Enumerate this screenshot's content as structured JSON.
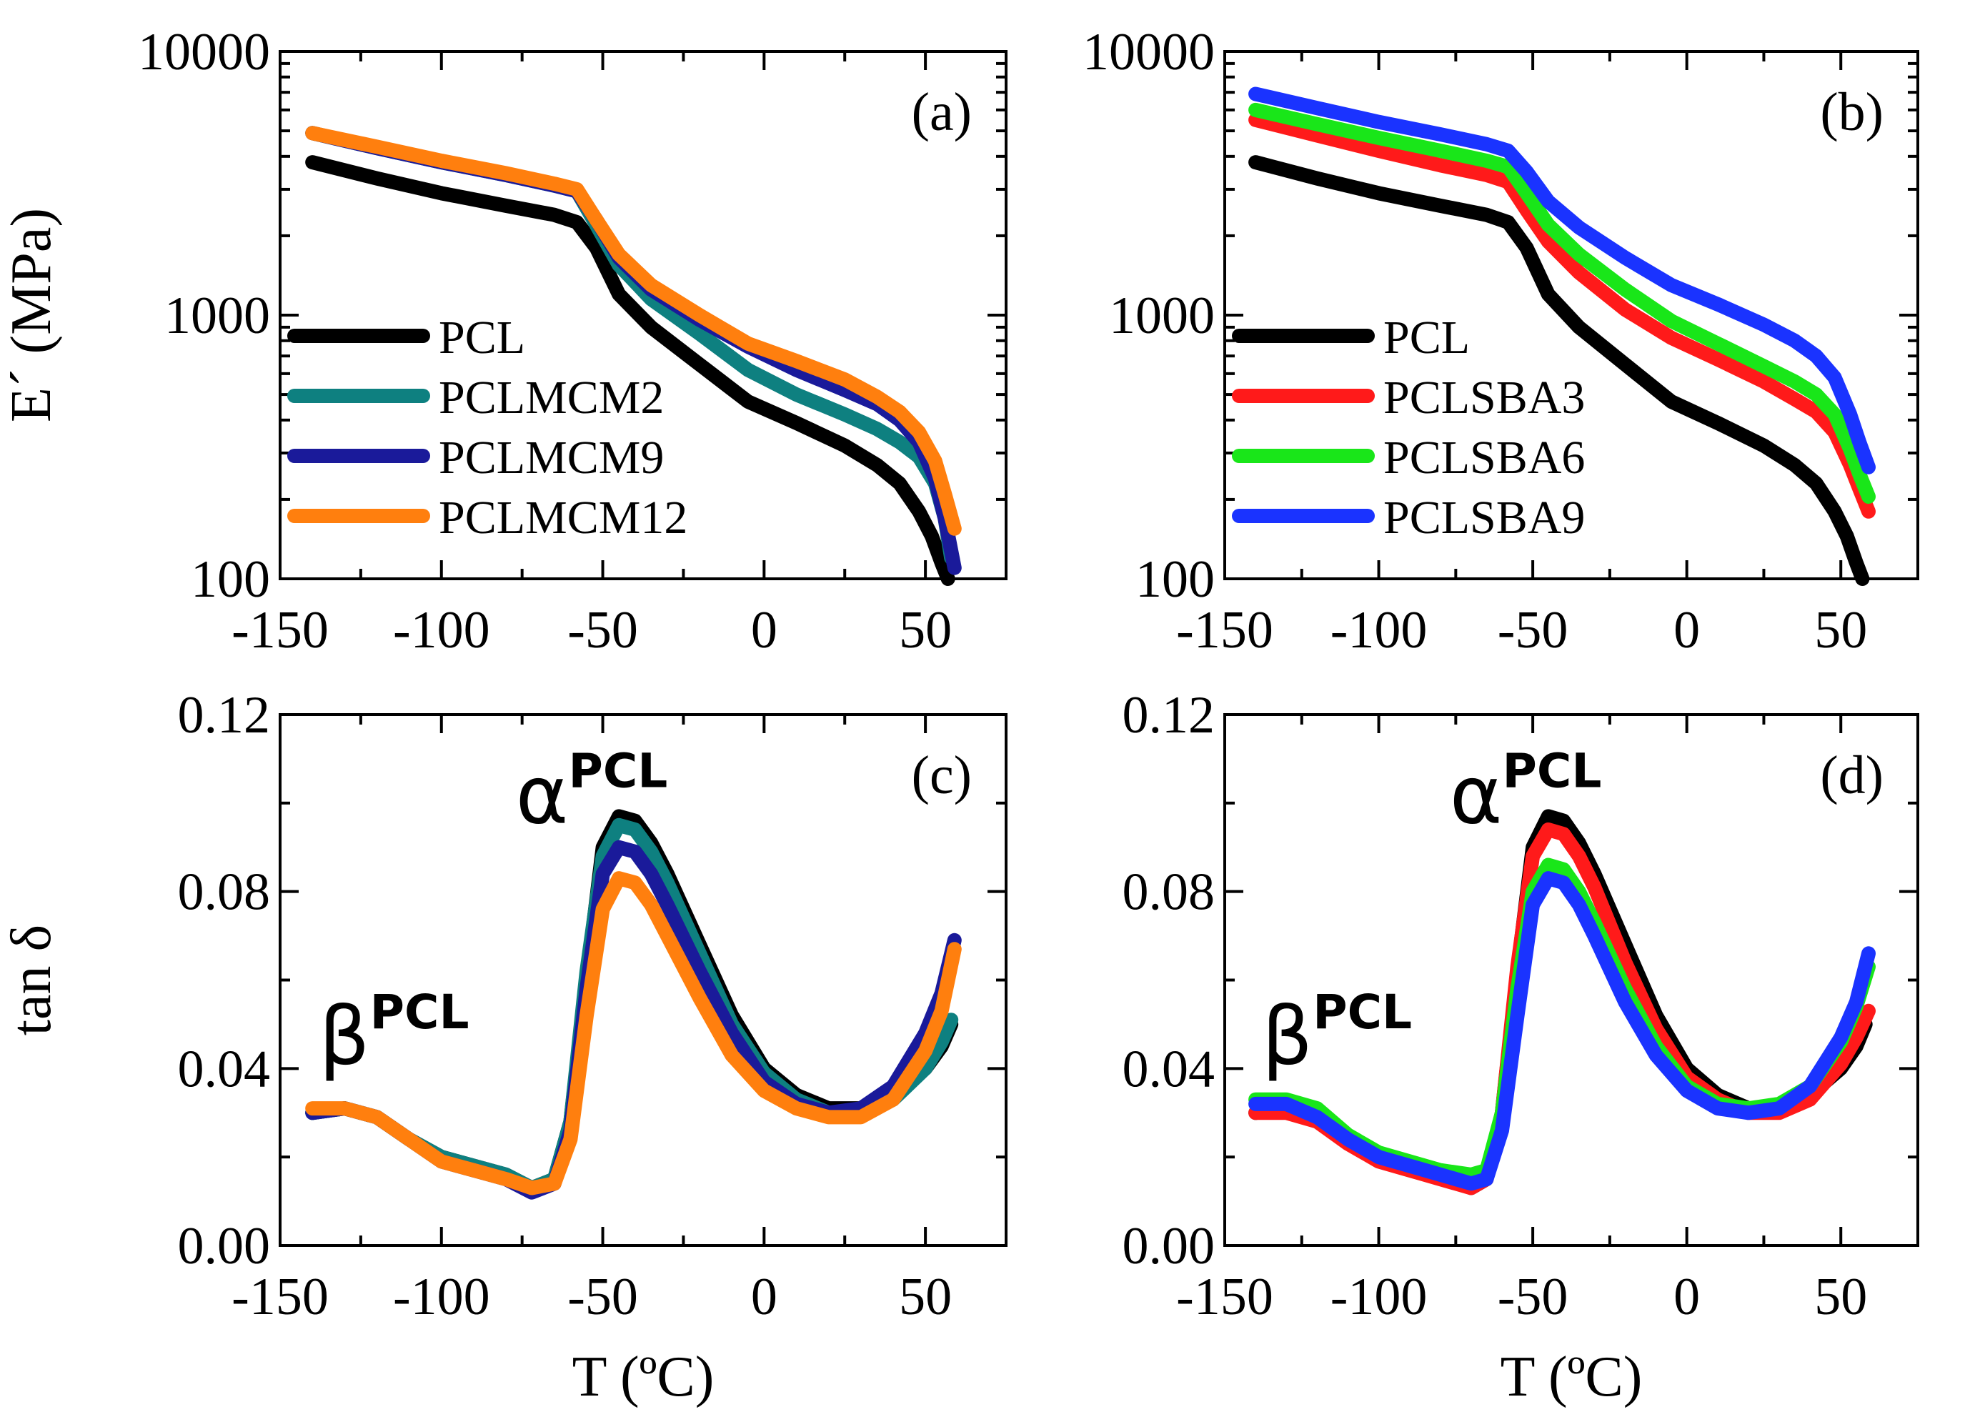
{
  "colors": {
    "PCL": "#000000",
    "PCLMCM2": "#0e8080",
    "PCLMCM9": "#1a1a9a",
    "PCLMCM12": "#ff7f0e",
    "PCLSBA3": "#ff1a1a",
    "PCLSBA6": "#19e619",
    "PCLSBA9": "#1a33ff"
  },
  "chart_data": [
    {
      "id": "a",
      "type": "line",
      "panel_label": "(a)",
      "ylabel": "E´ (MPa)",
      "xlabel": "",
      "yscale": "log",
      "xlim": [
        -150,
        75
      ],
      "ylim": [
        100,
        10000
      ],
      "xticks": [
        -150,
        -100,
        -50,
        0,
        50
      ],
      "xtick_labels": [
        "-150",
        "-100",
        "-50",
        "0",
        "50"
      ],
      "yticks": [
        100,
        1000,
        10000
      ],
      "ytick_labels": [
        "100",
        "1000",
        "10000"
      ],
      "legend": {
        "position": "bottom-left",
        "entries": [
          "PCL",
          "PCLMCM2",
          "PCLMCM9",
          "PCLMCM12"
        ]
      },
      "series": [
        {
          "name": "PCL",
          "x": [
            -140,
            -120,
            -100,
            -80,
            -65,
            -58,
            -52,
            -45,
            -35,
            -20,
            -5,
            10,
            25,
            35,
            42,
            48,
            52,
            55,
            57
          ],
          "y": [
            3800,
            3300,
            2900,
            2600,
            2400,
            2250,
            1800,
            1200,
            900,
            650,
            470,
            390,
            320,
            270,
            230,
            180,
            145,
            115,
            100
          ]
        },
        {
          "name": "PCLMCM2",
          "x": [
            -140,
            -120,
            -100,
            -80,
            -65,
            -58,
            -52,
            -45,
            -35,
            -20,
            -5,
            10,
            25,
            35,
            42,
            48,
            53,
            56,
            58
          ],
          "y": [
            4900,
            4300,
            3800,
            3400,
            3100,
            2950,
            2200,
            1550,
            1150,
            850,
            620,
            500,
            420,
            370,
            330,
            290,
            230,
            170,
            120
          ]
        },
        {
          "name": "PCLMCM9",
          "x": [
            -140,
            -120,
            -100,
            -80,
            -65,
            -58,
            -52,
            -45,
            -35,
            -20,
            -5,
            10,
            25,
            35,
            42,
            48,
            53,
            56,
            59
          ],
          "y": [
            4900,
            4300,
            3800,
            3400,
            3100,
            2950,
            2300,
            1650,
            1250,
            960,
            760,
            620,
            520,
            460,
            400,
            330,
            240,
            170,
            110
          ]
        },
        {
          "name": "PCLMCM12",
          "x": [
            -140,
            -120,
            -100,
            -80,
            -65,
            -58,
            -52,
            -45,
            -35,
            -20,
            -5,
            10,
            25,
            35,
            42,
            48,
            53,
            56,
            59
          ],
          "y": [
            4900,
            4350,
            3850,
            3450,
            3150,
            3000,
            2300,
            1700,
            1300,
            1000,
            780,
            670,
            570,
            490,
            430,
            360,
            280,
            210,
            155
          ]
        }
      ]
    },
    {
      "id": "b",
      "type": "line",
      "panel_label": "(b)",
      "ylabel": "",
      "xlabel": "",
      "yscale": "log",
      "xlim": [
        -150,
        75
      ],
      "ylim": [
        100,
        10000
      ],
      "xticks": [
        -150,
        -100,
        -50,
        0,
        50
      ],
      "xtick_labels": [
        "-150",
        "-100",
        "-50",
        "0",
        "50"
      ],
      "yticks": [
        100,
        1000,
        10000
      ],
      "ytick_labels": [
        "100",
        "1000",
        "10000"
      ],
      "legend": {
        "position": "bottom-left",
        "entries": [
          "PCL",
          "PCLSBA3",
          "PCLSBA6",
          "PCLSBA9"
        ]
      },
      "series": [
        {
          "name": "PCL",
          "x": [
            -140,
            -120,
            -100,
            -80,
            -65,
            -58,
            -52,
            -45,
            -35,
            -20,
            -5,
            10,
            25,
            35,
            42,
            48,
            52,
            55,
            57
          ],
          "y": [
            3800,
            3300,
            2900,
            2600,
            2400,
            2250,
            1800,
            1200,
            900,
            650,
            470,
            390,
            320,
            270,
            230,
            180,
            145,
            115,
            100
          ]
        },
        {
          "name": "PCLSBA3",
          "x": [
            -140,
            -120,
            -100,
            -80,
            -65,
            -58,
            -52,
            -45,
            -35,
            -20,
            -5,
            10,
            25,
            35,
            42,
            48,
            53,
            56,
            59
          ],
          "y": [
            5500,
            4800,
            4200,
            3700,
            3400,
            3200,
            2500,
            1900,
            1450,
            1050,
            820,
            680,
            560,
            480,
            430,
            360,
            270,
            220,
            180
          ]
        },
        {
          "name": "PCLSBA6",
          "x": [
            -140,
            -120,
            -100,
            -80,
            -65,
            -58,
            -52,
            -45,
            -35,
            -20,
            -5,
            10,
            25,
            35,
            42,
            48,
            53,
            56,
            59
          ],
          "y": [
            6000,
            5300,
            4700,
            4200,
            3850,
            3650,
            2900,
            2200,
            1700,
            1250,
            950,
            780,
            640,
            560,
            500,
            420,
            310,
            250,
            205
          ]
        },
        {
          "name": "PCLSBA9",
          "x": [
            -140,
            -120,
            -100,
            -80,
            -65,
            -58,
            -52,
            -45,
            -35,
            -20,
            -5,
            10,
            25,
            35,
            42,
            48,
            53,
            56,
            59
          ],
          "y": [
            6900,
            6100,
            5400,
            4850,
            4450,
            4200,
            3500,
            2700,
            2150,
            1650,
            1300,
            1100,
            920,
            800,
            700,
            580,
            420,
            330,
            265
          ]
        }
      ]
    },
    {
      "id": "c",
      "type": "line",
      "panel_label": "(c)",
      "ylabel": "tan δ",
      "xlabel": "T (ºC)",
      "yscale": "linear",
      "xlim": [
        -150,
        75
      ],
      "ylim": [
        0.0,
        0.12
      ],
      "xticks": [
        -150,
        -100,
        -50,
        0,
        50
      ],
      "xtick_labels": [
        "-150",
        "-100",
        "-50",
        "0",
        "50"
      ],
      "yticks": [
        0.0,
        0.04,
        0.08,
        0.12
      ],
      "ytick_labels": [
        "0.00",
        "0.04",
        "0.08",
        "0.12"
      ],
      "annotations": [
        {
          "symbol": "β",
          "superscript": "PCL",
          "x": -138,
          "y": 0.041
        },
        {
          "symbol": "α",
          "superscript": "PCL",
          "x": -77,
          "y": 0.0955
        }
      ],
      "series": [
        {
          "name": "PCL",
          "x": [
            -140,
            -130,
            -120,
            -110,
            -100,
            -90,
            -80,
            -72,
            -65,
            -60,
            -55,
            -50,
            -45,
            -40,
            -35,
            -30,
            -20,
            -10,
            0,
            10,
            20,
            30,
            40,
            50,
            55,
            58
          ],
          "y": [
            0.03,
            0.031,
            0.029,
            0.024,
            0.02,
            0.018,
            0.016,
            0.013,
            0.015,
            0.028,
            0.06,
            0.09,
            0.097,
            0.096,
            0.091,
            0.084,
            0.068,
            0.052,
            0.04,
            0.034,
            0.031,
            0.031,
            0.034,
            0.04,
            0.045,
            0.05
          ]
        },
        {
          "name": "PCLMCM2",
          "x": [
            -140,
            -130,
            -120,
            -110,
            -100,
            -90,
            -80,
            -72,
            -65,
            -60,
            -55,
            -50,
            -45,
            -40,
            -35,
            -30,
            -20,
            -10,
            0,
            10,
            20,
            30,
            40,
            50,
            55,
            58
          ],
          "y": [
            0.03,
            0.031,
            0.029,
            0.024,
            0.02,
            0.018,
            0.016,
            0.013,
            0.015,
            0.028,
            0.062,
            0.088,
            0.095,
            0.094,
            0.089,
            0.082,
            0.066,
            0.05,
            0.039,
            0.033,
            0.03,
            0.03,
            0.033,
            0.04,
            0.046,
            0.051
          ]
        },
        {
          "name": "PCLMCM9",
          "x": [
            -140,
            -130,
            -120,
            -110,
            -100,
            -90,
            -80,
            -72,
            -65,
            -60,
            -55,
            -50,
            -45,
            -40,
            -35,
            -30,
            -20,
            -10,
            0,
            10,
            20,
            30,
            40,
            50,
            55,
            59
          ],
          "y": [
            0.03,
            0.031,
            0.029,
            0.024,
            0.019,
            0.017,
            0.015,
            0.012,
            0.014,
            0.026,
            0.058,
            0.084,
            0.09,
            0.089,
            0.084,
            0.077,
            0.062,
            0.048,
            0.037,
            0.032,
            0.03,
            0.031,
            0.036,
            0.048,
            0.057,
            0.069
          ]
        },
        {
          "name": "PCLMCM12",
          "x": [
            -140,
            -130,
            -120,
            -110,
            -100,
            -90,
            -80,
            -72,
            -65,
            -60,
            -55,
            -50,
            -45,
            -40,
            -35,
            -30,
            -20,
            -10,
            0,
            10,
            20,
            30,
            40,
            50,
            55,
            59
          ],
          "y": [
            0.031,
            0.031,
            0.029,
            0.024,
            0.019,
            0.017,
            0.015,
            0.013,
            0.014,
            0.024,
            0.052,
            0.076,
            0.083,
            0.082,
            0.077,
            0.07,
            0.056,
            0.043,
            0.035,
            0.031,
            0.029,
            0.029,
            0.033,
            0.044,
            0.053,
            0.067
          ]
        }
      ]
    },
    {
      "id": "d",
      "type": "line",
      "panel_label": "(d)",
      "ylabel": "",
      "xlabel": "T (ºC)",
      "yscale": "linear",
      "xlim": [
        -150,
        75
      ],
      "ylim": [
        0.0,
        0.12
      ],
      "xticks": [
        -150,
        -100,
        -50,
        0,
        50
      ],
      "xtick_labels": [
        "-150",
        "-100",
        "-50",
        "0",
        "50"
      ],
      "yticks": [
        0.0,
        0.04,
        0.08,
        0.12
      ],
      "ytick_labels": [
        "0.00",
        "0.04",
        "0.08",
        "0.12"
      ],
      "annotations": [
        {
          "symbol": "β",
          "superscript": "PCL",
          "x": -138,
          "y": 0.041
        },
        {
          "symbol": "α",
          "superscript": "PCL",
          "x": -77,
          "y": 0.0955
        }
      ],
      "series": [
        {
          "name": "PCL",
          "x": [
            -140,
            -130,
            -120,
            -110,
            -100,
            -90,
            -80,
            -70,
            -65,
            -60,
            -55,
            -50,
            -45,
            -40,
            -35,
            -30,
            -20,
            -10,
            0,
            10,
            20,
            30,
            40,
            50,
            55,
            58
          ],
          "y": [
            0.03,
            0.031,
            0.029,
            0.024,
            0.02,
            0.018,
            0.016,
            0.013,
            0.015,
            0.03,
            0.062,
            0.09,
            0.097,
            0.096,
            0.091,
            0.084,
            0.068,
            0.052,
            0.04,
            0.034,
            0.031,
            0.031,
            0.034,
            0.04,
            0.045,
            0.05
          ]
        },
        {
          "name": "PCLSBA3",
          "x": [
            -140,
            -130,
            -120,
            -110,
            -100,
            -90,
            -80,
            -70,
            -65,
            -60,
            -55,
            -50,
            -45,
            -40,
            -35,
            -30,
            -20,
            -10,
            0,
            10,
            20,
            30,
            40,
            50,
            55,
            59
          ],
          "y": [
            0.03,
            0.03,
            0.028,
            0.023,
            0.019,
            0.017,
            0.015,
            0.013,
            0.015,
            0.03,
            0.063,
            0.088,
            0.094,
            0.093,
            0.088,
            0.081,
            0.064,
            0.049,
            0.038,
            0.033,
            0.03,
            0.03,
            0.033,
            0.041,
            0.047,
            0.053
          ]
        },
        {
          "name": "PCLSBA6",
          "x": [
            -140,
            -130,
            -120,
            -110,
            -100,
            -90,
            -80,
            -70,
            -65,
            -60,
            -55,
            -50,
            -45,
            -40,
            -35,
            -30,
            -20,
            -10,
            0,
            10,
            20,
            30,
            40,
            50,
            55,
            59
          ],
          "y": [
            0.033,
            0.033,
            0.031,
            0.025,
            0.021,
            0.019,
            0.017,
            0.016,
            0.017,
            0.03,
            0.058,
            0.08,
            0.086,
            0.085,
            0.08,
            0.073,
            0.058,
            0.045,
            0.036,
            0.032,
            0.031,
            0.032,
            0.036,
            0.046,
            0.054,
            0.063
          ]
        },
        {
          "name": "PCLSBA9",
          "x": [
            -140,
            -130,
            -120,
            -110,
            -100,
            -90,
            -80,
            -70,
            -65,
            -60,
            -55,
            -50,
            -45,
            -40,
            -35,
            -30,
            -20,
            -10,
            0,
            10,
            20,
            30,
            40,
            50,
            55,
            59
          ],
          "y": [
            0.032,
            0.032,
            0.029,
            0.024,
            0.02,
            0.018,
            0.016,
            0.014,
            0.015,
            0.026,
            0.052,
            0.077,
            0.083,
            0.082,
            0.077,
            0.07,
            0.055,
            0.043,
            0.035,
            0.031,
            0.03,
            0.031,
            0.036,
            0.047,
            0.055,
            0.066
          ]
        }
      ]
    }
  ]
}
